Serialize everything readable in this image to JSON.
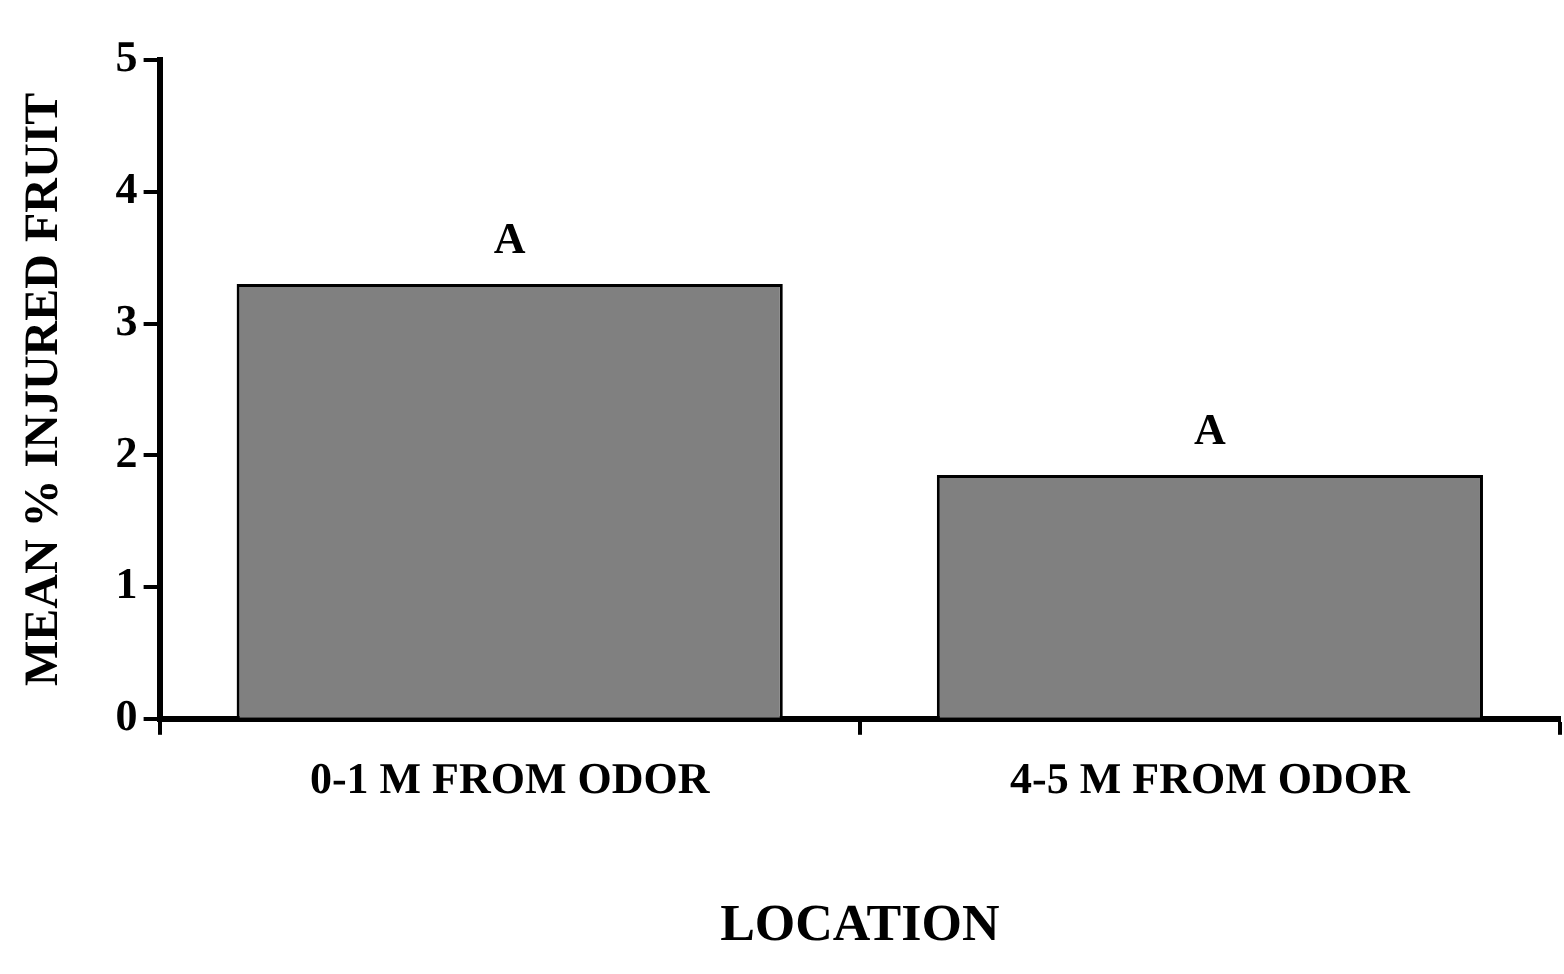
{
  "chart_data": {
    "type": "bar",
    "xlabel": "LOCATION",
    "ylabel": "MEAN % INJURED FRUIT",
    "categories": [
      "0-1 M FROM ODOR",
      "4-5 M FROM ODOR"
    ],
    "values": [
      3.3,
      1.85
    ],
    "color": "#808080",
    "ylim": [
      0,
      5
    ],
    "yticks": [
      0,
      1,
      2,
      3,
      4,
      5
    ],
    "grid": false,
    "legend": false,
    "annotations": [
      {
        "text": "A",
        "x": "0-1 M FROM ODOR",
        "y": 3.3
      },
      {
        "text": "A",
        "x": "4-5 M FROM ODOR",
        "y": 1.85
      }
    ]
  }
}
